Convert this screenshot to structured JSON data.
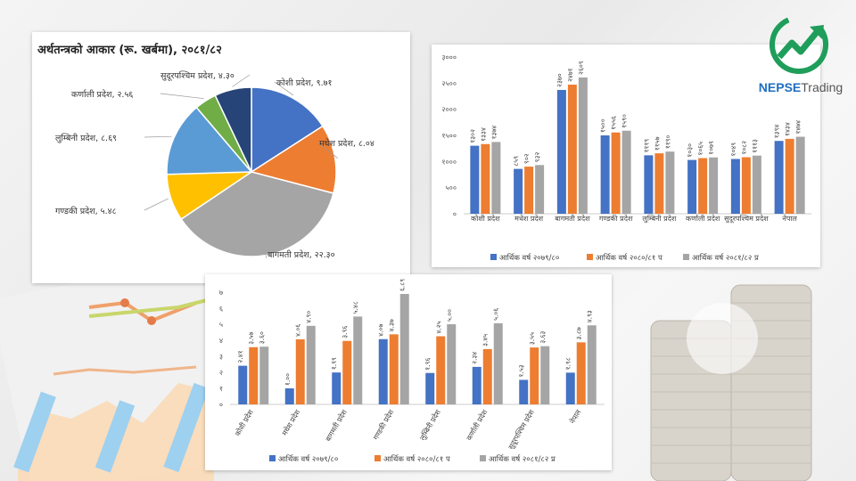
{
  "brand": {
    "name_part1": "NEPSE",
    "name_part2": "Trading",
    "color": "#1e9e5a"
  },
  "colors": {
    "blue": "#4472c4",
    "orange": "#ed7d31",
    "gray": "#a5a5a5",
    "yellow": "#ffc000",
    "lightblue": "#5b9bd5",
    "green": "#70ad47",
    "navy": "#264478"
  },
  "chart_data": [
    {
      "type": "pie",
      "title": "अर्थतन्त्रको आकार (रू. खर्बमा), २०८१/८२",
      "slices": [
        {
          "label": "कोशी प्रदेश, ९.७१",
          "value": 9.71,
          "color": "#4472c4"
        },
        {
          "label": "मधेश प्रदेश, ८.०४",
          "value": 8.04,
          "color": "#ed7d31"
        },
        {
          "label": "बागमती प्रदेश, २२.३०",
          "value": 22.3,
          "color": "#a5a5a5"
        },
        {
          "label": "गण्डकी प्रदेश, ५.४८",
          "value": 5.48,
          "color": "#ffc000"
        },
        {
          "label": "लुम्बिनी प्रदेश, ८.६९",
          "value": 8.69,
          "color": "#5b9bd5"
        },
        {
          "label": "कर्णाली प्रदेश, २.५६",
          "value": 2.56,
          "color": "#70ad47"
        },
        {
          "label": "सुदूरपश्चिम प्रदेश, ४.३०",
          "value": 4.3,
          "color": "#264478"
        }
      ]
    },
    {
      "type": "bar",
      "categories": [
        "कोशी प्रदेश",
        "मधेश प्रदेश",
        "बागमती प्रदेश",
        "गण्डकी प्रदेश",
        "लुम्बिनी प्रदेश",
        "कर्णाली प्रदेश",
        "सुदूरपश्चिम प्रदेश",
        "नेपाल"
      ],
      "series": [
        {
          "name": "आर्थिक वर्ष २०७९/८०",
          "values": [
            1302,
            859,
            2370,
            1500,
            1119,
            1030,
            1049,
            1394
          ],
          "labels": [
            "१३०२",
            "८५९",
            "२३७०",
            "१५००",
            "१११९",
            "१०३०",
            "१०४९",
            "१३९४"
          ]
        },
        {
          "name": "आर्थिक वर्ष २०८०/८१ प",
          "values": [
            1334,
            902,
            2471,
            1556,
            1157,
            1065,
            1082,
            1434
          ],
          "labels": [
            "१३३४",
            "९०२",
            "२४७१",
            "१५५६",
            "११५७",
            "१०६५",
            "१०८२",
            "१४३४"
          ]
        },
        {
          "name": "आर्थिक वर्ष २०८१/८२ प्र",
          "values": [
            1374,
            932,
            2609,
            1590,
            1190,
            1079,
            1113,
            1474
          ],
          "labels": [
            "१३७४",
            "९३२",
            "२६०९",
            "१५९०",
            "११९०",
            "१०७९",
            "१११३",
            "१४७४"
          ]
        }
      ],
      "yticks": [
        "०",
        "५००",
        "१०००",
        "१५००",
        "२०००",
        "२५००",
        "३०००"
      ],
      "ylim": [
        0,
        3000
      ],
      "legend_position": "bottom"
    },
    {
      "type": "bar",
      "categories": [
        "कोशी प्रदेश",
        "मधेश प्रदेश",
        "बागमती प्रदेश",
        "गण्डकी प्रदेश",
        "लुम्बिनी प्रदेश",
        "कर्णाली प्रदेश",
        "सुदूरपश्चिम प्रदेश",
        "नेपाल"
      ],
      "series": [
        {
          "name": "आर्थिक वर्ष २०७९/८०",
          "values": [
            2.41,
            1.0,
            1.99,
            4.07,
            1.96,
            2.34,
            1.53,
            1.98
          ],
          "labels": [
            "२.४१",
            "१.००",
            "१.९९",
            "४.०७",
            "१.९६",
            "२.३४",
            "१.५३",
            "१.९८"
          ]
        },
        {
          "name": "आर्थिक वर्ष २०८०/८१ प",
          "values": [
            3.57,
            4.06,
            3.96,
            4.37,
            4.25,
            3.45,
            3.55,
            3.87
          ],
          "labels": [
            "३.५७",
            "४.०६",
            "३.९६",
            "४.३७",
            "४.२५",
            "३.४५",
            "३.५५",
            "३.८७"
          ]
        },
        {
          "name": "आर्थिक वर्ष २०८१/८२ प्र",
          "values": [
            3.6,
            4.9,
            5.48,
            6.89,
            5.0,
            5.06,
            3.63,
            4.93
          ],
          "labels": [
            "३.६०",
            "४.९०",
            "५.४८",
            "६.८९",
            "५.००",
            "५.०६",
            "३.६३",
            "४.९३"
          ]
        }
      ],
      "yticks": [
        "०",
        "१",
        "२",
        "३",
        "४",
        "५",
        "६",
        "७"
      ],
      "ylim": [
        0,
        7
      ],
      "legend_position": "bottom"
    }
  ]
}
